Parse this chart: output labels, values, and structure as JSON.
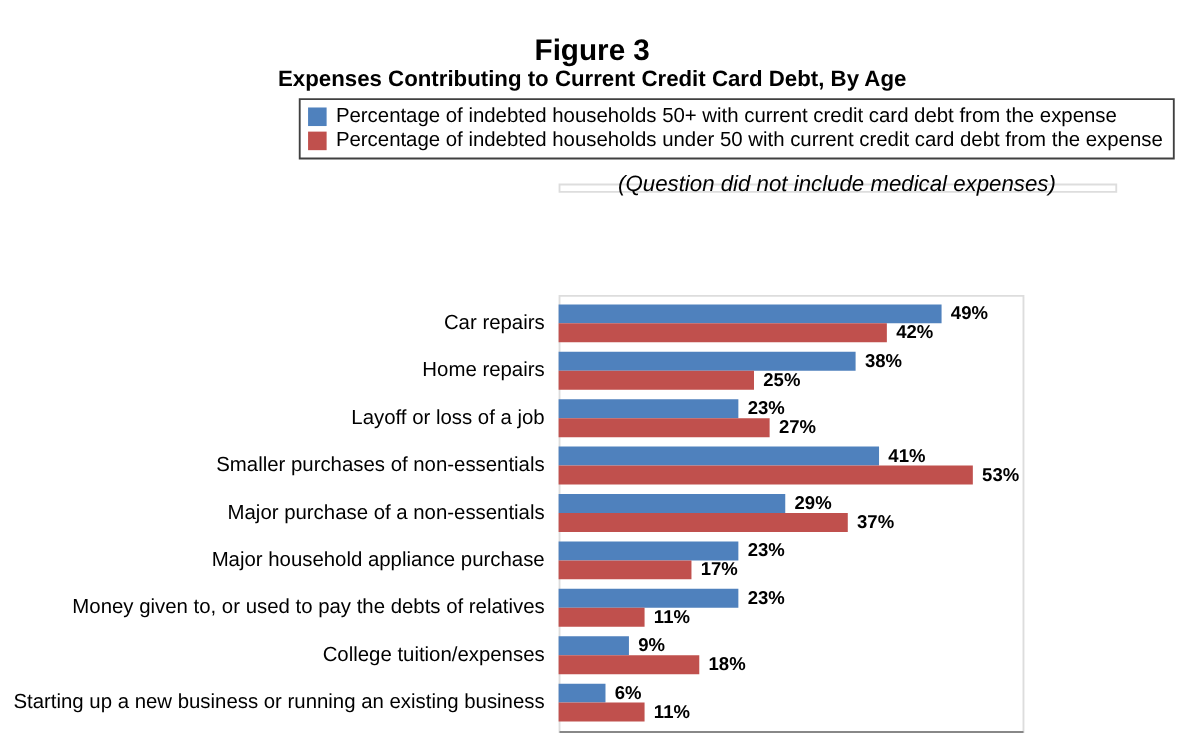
{
  "chart_data": {
    "type": "bar",
    "orientation": "horizontal",
    "title": "Figure 3",
    "subtitle": "Expenses Contributing to Current Credit Card Debt, By Age",
    "annotations": [
      "(Question did not include medical expenses)"
    ],
    "categories": [
      "Car repairs",
      "Home repairs",
      "Layoff or loss of a job",
      "Smaller purchases of non-essentials",
      "Major purchase of a non-essentials",
      "Major household appliance purchase",
      "Money given to, or used to pay the debts of relatives",
      "College tuition/expenses",
      "Starting up a new business or running an existing business"
    ],
    "series": [
      {
        "name": "Percentage of indebted households 50+ with current credit card debt from the expense",
        "color": "#4f81bd",
        "values": [
          49,
          38,
          23,
          41,
          29,
          23,
          23,
          9,
          6
        ],
        "value_labels": [
          "49%",
          "38%",
          "23%",
          "41%",
          "29%",
          "23%",
          "23%",
          "9%",
          "6%"
        ]
      },
      {
        "name": "Percentage of indebted households under 50 with current credit card debt from the expense",
        "color": "#c0504d",
        "values": [
          42,
          25,
          27,
          53,
          37,
          17,
          11,
          18,
          11
        ],
        "value_labels": [
          "42%",
          "25%",
          "27%",
          "53%",
          "37%",
          "17%",
          "11%",
          "18%",
          "11%"
        ]
      }
    ],
    "legend": "top",
    "tick_labels": "y"
  }
}
